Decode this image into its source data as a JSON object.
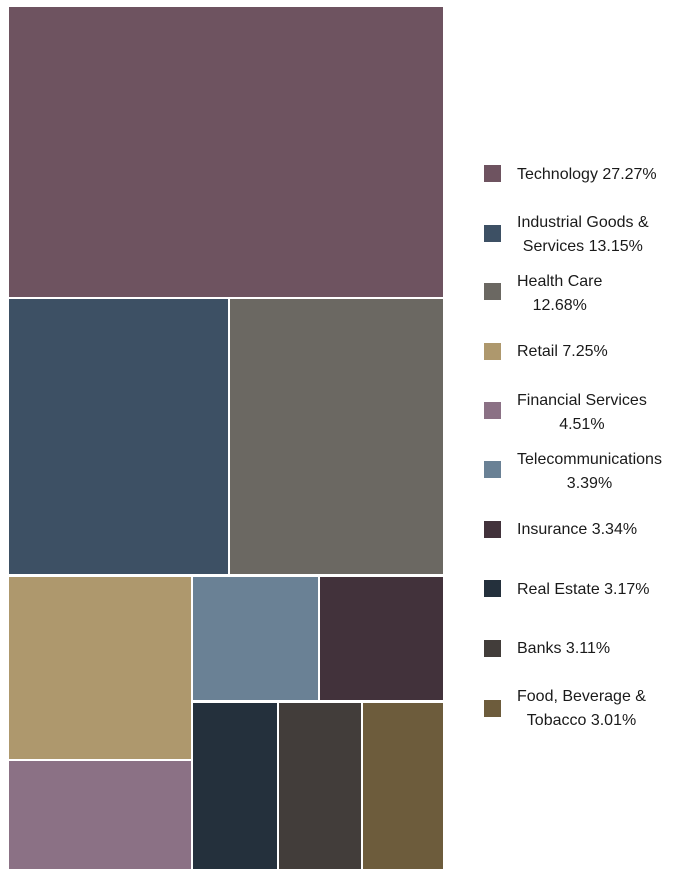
{
  "chart_data": {
    "type": "treemap",
    "legend_position": "right",
    "series": [
      {
        "name": "Technology",
        "value": 27.27,
        "label_lines": [
          "Technology 27.27%"
        ],
        "color": "#6e5360"
      },
      {
        "name": "Industrial Goods & Services",
        "value": 13.15,
        "label_lines": [
          "Industrial Goods &",
          "Services 13.15%"
        ],
        "color": "#3d5064"
      },
      {
        "name": "Health Care",
        "value": 12.68,
        "label_lines": [
          "Health Care",
          "12.68%"
        ],
        "color": "#6b6862"
      },
      {
        "name": "Retail",
        "value": 7.25,
        "label_lines": [
          "Retail  7.25%"
        ],
        "color": "#ae986d"
      },
      {
        "name": "Financial Services",
        "value": 4.51,
        "label_lines": [
          "Financial Services",
          "4.51%"
        ],
        "color": "#8b7185"
      },
      {
        "name": "Telecommunications",
        "value": 3.39,
        "label_lines": [
          "Telecommunications",
          "3.39%"
        ],
        "color": "#6a8195"
      },
      {
        "name": "Insurance",
        "value": 3.34,
        "label_lines": [
          "Insurance 3.34%"
        ],
        "color": "#42323b"
      },
      {
        "name": "Real Estate",
        "value": 3.17,
        "label_lines": [
          "Real Estate  3.17%"
        ],
        "color": "#24303c"
      },
      {
        "name": "Banks",
        "value": 3.11,
        "label_lines": [
          "Banks 3.11%"
        ],
        "color": "#423d3a"
      },
      {
        "name": "Food, Beverage & Tobacco",
        "value": 3.01,
        "label_lines": [
          "Food, Beverage &",
          "Tobacco  3.01%"
        ],
        "color": "#6d5c3c"
      }
    ]
  }
}
